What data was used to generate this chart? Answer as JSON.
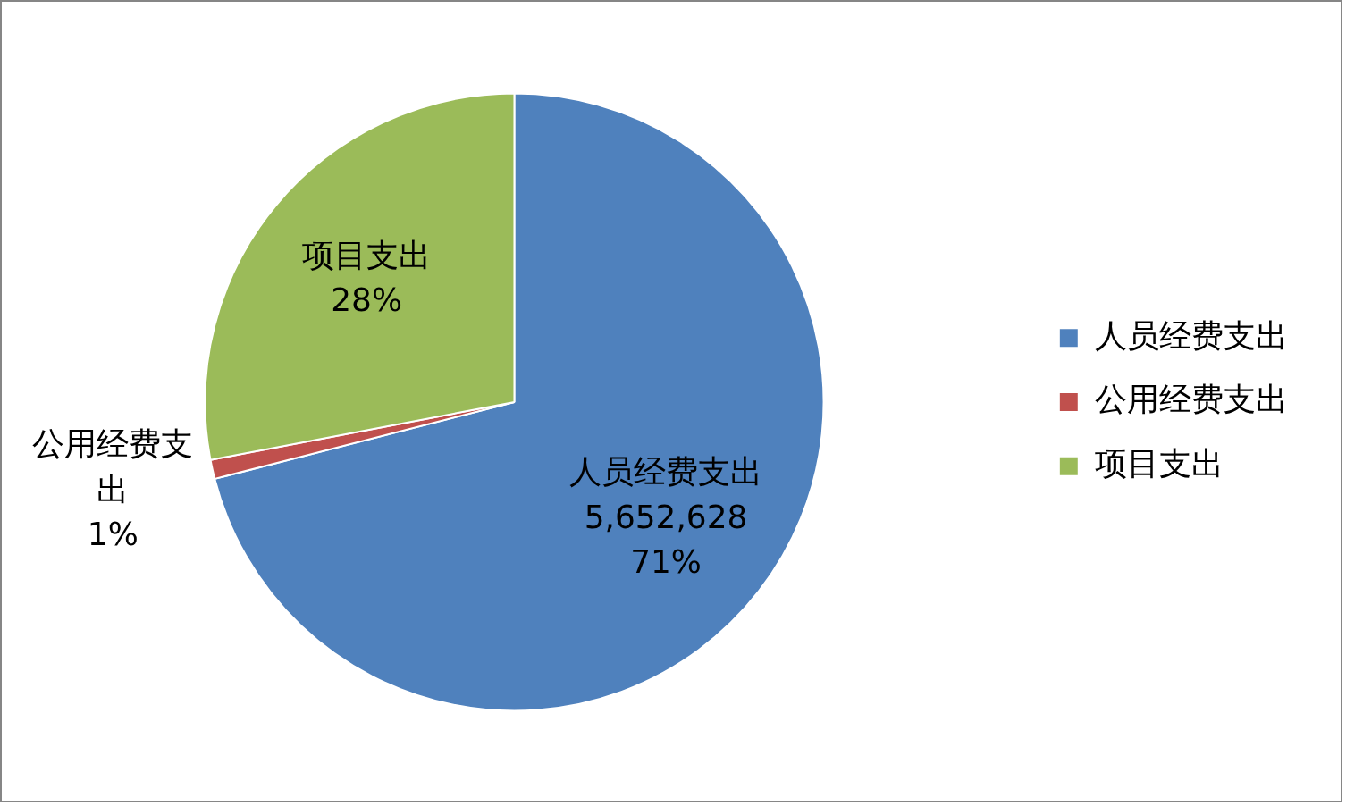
{
  "chart_data": {
    "type": "pie",
    "categories": [
      "人员经费支出",
      "公用经费支出",
      "项目支出"
    ],
    "values": [
      71,
      1,
      28
    ],
    "colors": [
      "#4f81bd",
      "#c0504d",
      "#9bbb59"
    ],
    "value_labels": [
      "5,652,628\n71%",
      "1%",
      "28%"
    ],
    "legend": "right"
  }
}
